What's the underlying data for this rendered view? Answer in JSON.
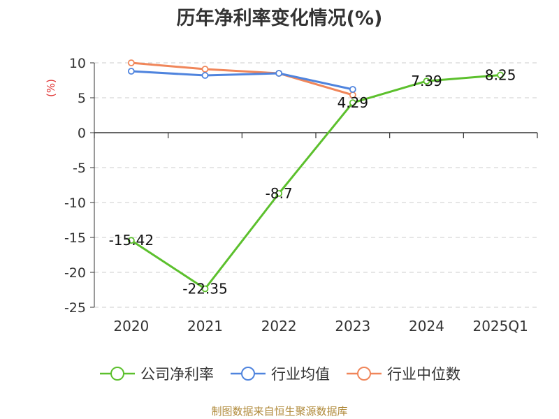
{
  "chart_data": {
    "type": "line",
    "title": "历年净利率变化情况(%)",
    "ylabel": "(%)",
    "xlabel": "",
    "categories": [
      "2020",
      "2021",
      "2022",
      "2023",
      "2024",
      "2025Q1"
    ],
    "ylim": [
      -25,
      10
    ],
    "yticks": [
      "10",
      "5",
      "0",
      "-5",
      "-10",
      "-15",
      "-20",
      "-25"
    ],
    "ytick_values": [
      10,
      5,
      0,
      -5,
      -10,
      -15,
      -20,
      -25
    ],
    "grid": true,
    "legend_position": "bottom",
    "series": [
      {
        "name": "公司净利率",
        "color": "#5cc02d",
        "values": [
          -15.42,
          -22.35,
          -8.7,
          4.29,
          7.39,
          8.25
        ],
        "labels": [
          "-15.42",
          "-22.35",
          "-8.7",
          "4.29",
          "7.39",
          "8.25"
        ]
      },
      {
        "name": "行业均值",
        "color": "#4f84de",
        "values": [
          8.8,
          8.2,
          8.5,
          6.2,
          null,
          null
        ]
      },
      {
        "name": "行业中位数",
        "color": "#f0865a",
        "values": [
          10.0,
          9.1,
          8.5,
          5.4,
          null,
          null
        ]
      }
    ]
  },
  "source_note": "制图数据来自恒生聚源数据库"
}
